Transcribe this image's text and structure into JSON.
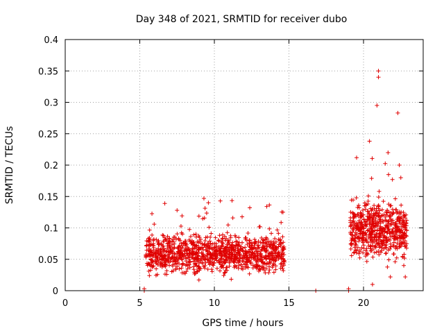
{
  "chart_data": {
    "type": "scatter",
    "title": "Day 348 of 2021, SRMTID for receiver dubo",
    "xlabel": "GPS time / hours",
    "ylabel": "SRMTID / TECUs",
    "xlim": [
      0,
      24
    ],
    "ylim": [
      0,
      0.4
    ],
    "xticks": [
      0,
      5,
      10,
      15,
      20
    ],
    "yticks": [
      0,
      0.05,
      0.1,
      0.15,
      0.2,
      0.25,
      0.3,
      0.35,
      0.4
    ],
    "xtick_labels": [
      "0",
      "5",
      "10",
      "15",
      "20"
    ],
    "ytick_labels": [
      "0",
      "0.05",
      "0.1",
      "0.15",
      "0.2",
      "0.25",
      "0.3",
      "0.35",
      "0.4"
    ],
    "grid": true,
    "marker": "+",
    "color": "#e00000",
    "series": [
      {
        "name": "dubo",
        "x": [
          5.3,
          5.3,
          16.8,
          19.0,
          19.0,
          21.0,
          21.0,
          22.3,
          22.4,
          20.9,
          22.5,
          9.3,
          10.4,
          9.6,
          7.5,
          14.6,
          22.8,
          20.6,
          21.8,
          22.7
        ],
        "y": [
          0.0,
          0.003,
          0.0,
          0.0,
          0.003,
          0.35,
          0.34,
          0.283,
          0.2,
          0.295,
          0.18,
          0.147,
          0.143,
          0.14,
          0.128,
          0.125,
          0.022,
          0.01,
          0.022,
          0.04
        ]
      }
    ],
    "clusters": [
      {
        "x_range": [
          5.4,
          14.7
        ],
        "y_center": 0.058,
        "y_spread": 0.03,
        "count": 1100,
        "seed": 7
      },
      {
        "x_range": [
          19.1,
          22.9
        ],
        "y_center": 0.095,
        "y_spread": 0.045,
        "count": 600,
        "seed": 13
      }
    ]
  }
}
